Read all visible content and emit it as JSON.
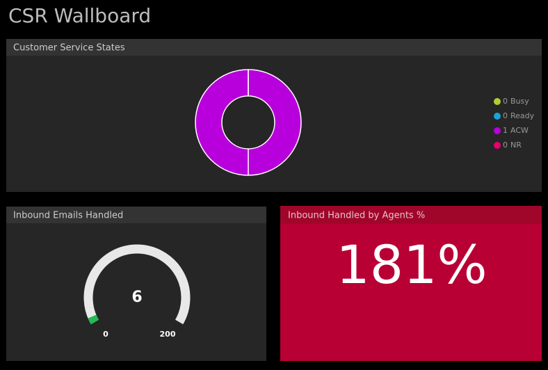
{
  "header": {
    "title": "CSR Wallboard"
  },
  "states_panel": {
    "title": "Customer Service States",
    "segments": [
      {
        "name": "Busy",
        "value": 0,
        "color": "#b5cc33"
      },
      {
        "name": "Ready",
        "value": 0,
        "color": "#1aa3d9"
      },
      {
        "name": "ACW",
        "value": 1,
        "color": "#b800dc"
      },
      {
        "name": "NR",
        "value": 0,
        "color": "#e6006e"
      }
    ]
  },
  "emails_panel": {
    "title": "Inbound Emails Handled",
    "value": 6,
    "min": 0,
    "max": 200,
    "color": "#22bb55"
  },
  "agents_panel": {
    "title": "Inbound Handled by Agents %",
    "value": "181%"
  }
}
